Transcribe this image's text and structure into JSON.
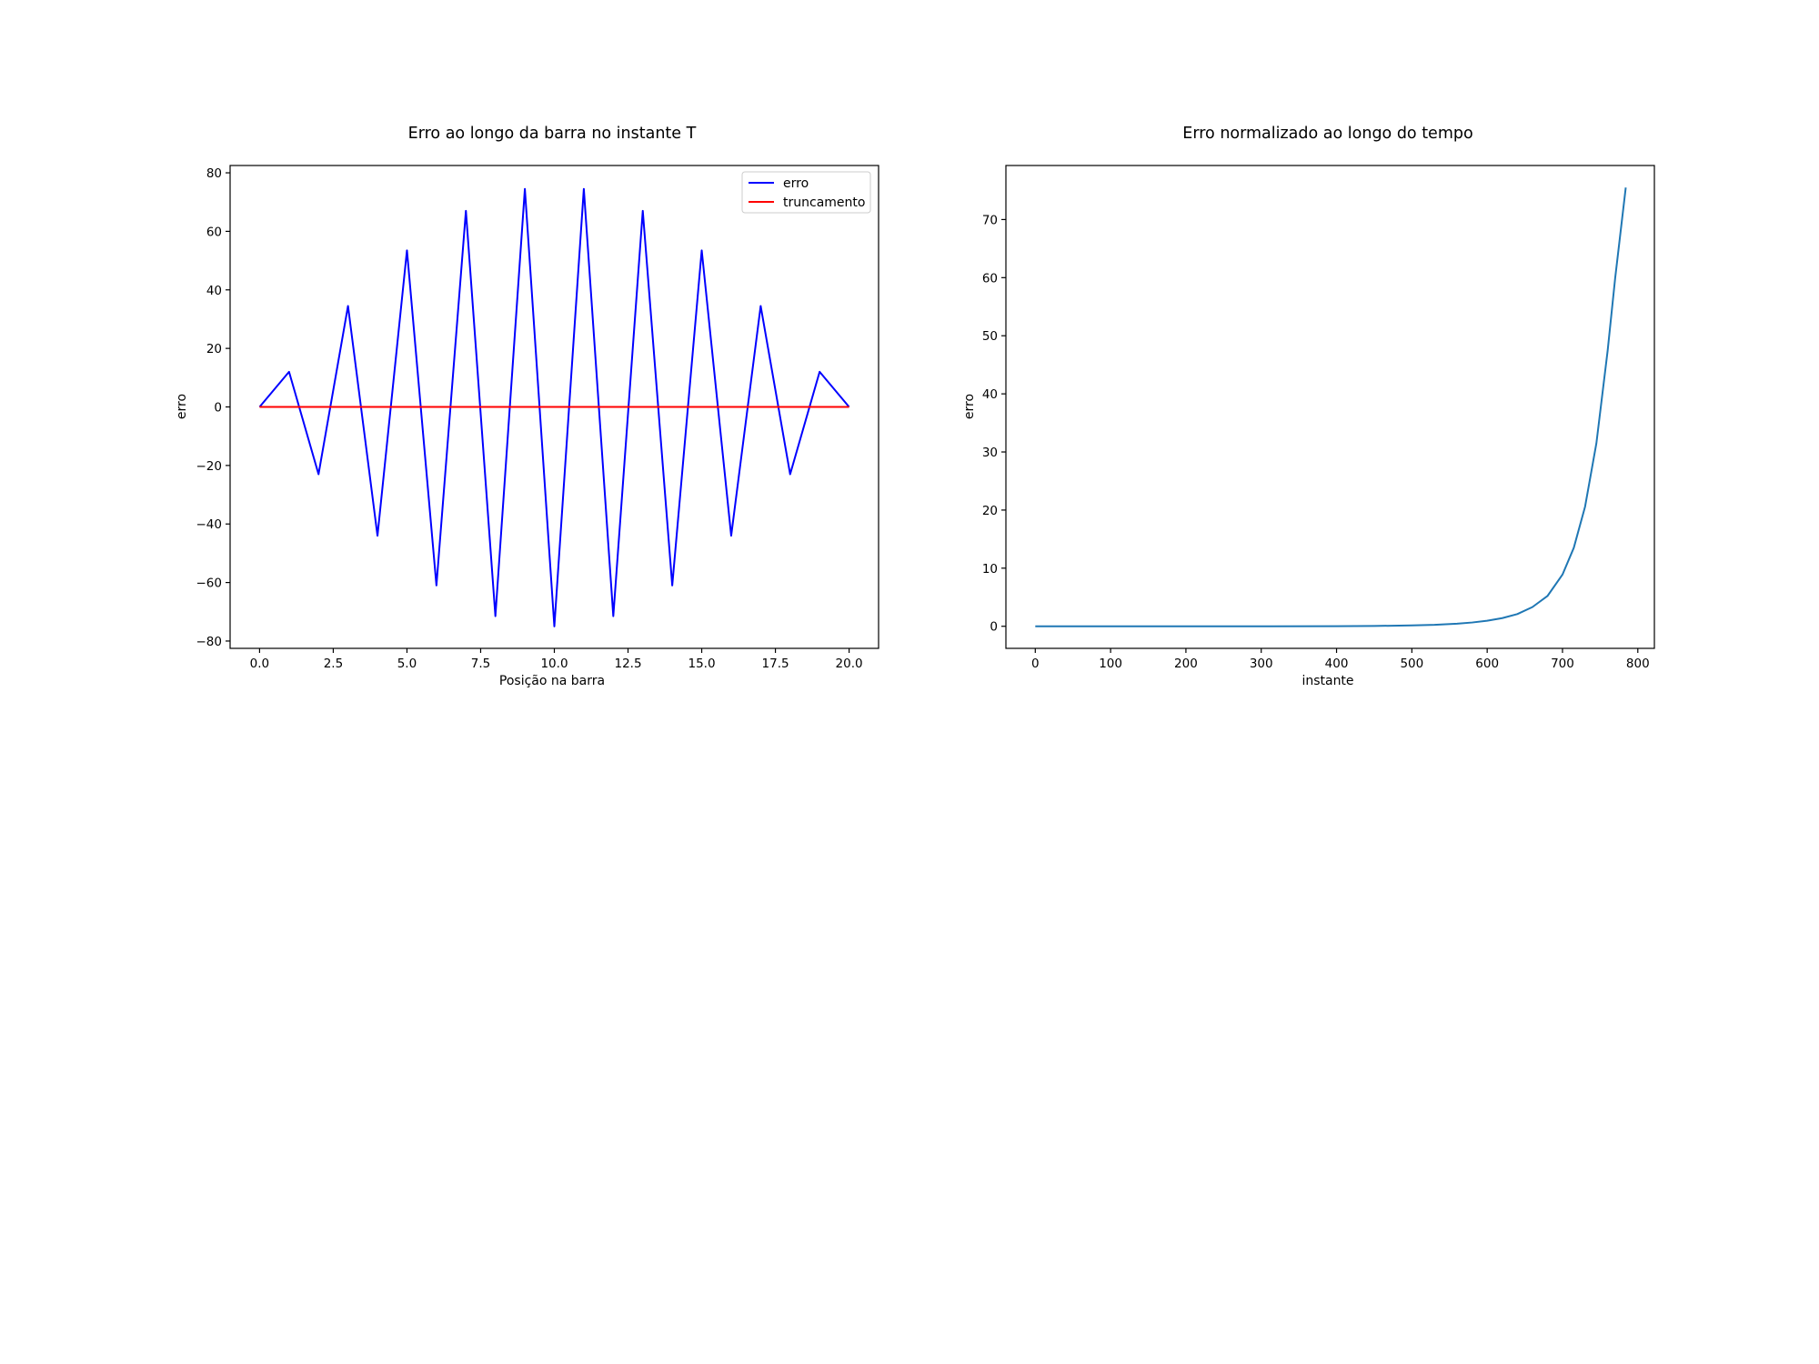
{
  "chart_data": [
    {
      "type": "line",
      "title": "Erro ao longo da barra no instante T",
      "xlabel": "Posição na barra",
      "ylabel": "erro",
      "xlim": [
        -1.0,
        21.0
      ],
      "ylim": [
        -82.5,
        82.5
      ],
      "xticks": [
        0.0,
        2.5,
        5.0,
        7.5,
        10.0,
        12.5,
        15.0,
        17.5,
        20.0
      ],
      "xtick_labels": [
        "0.0",
        "2.5",
        "5.0",
        "7.5",
        "10.0",
        "12.5",
        "15.0",
        "17.5",
        "20.0"
      ],
      "yticks": [
        -80,
        -60,
        -40,
        -20,
        0,
        20,
        40,
        60,
        80
      ],
      "ytick_labels": [
        "−80",
        "−60",
        "−40",
        "−20",
        "0",
        "20",
        "40",
        "60",
        "80"
      ],
      "grid": false,
      "legend": "top-right",
      "series": [
        {
          "name": "erro",
          "color": "#0000ff",
          "x": [
            0,
            1,
            2,
            3,
            4,
            5,
            6,
            7,
            8,
            9,
            10,
            11,
            12,
            13,
            14,
            15,
            16,
            17,
            18,
            19,
            20
          ],
          "y": [
            0,
            12,
            -23,
            34.5,
            -44,
            53.5,
            -61,
            67,
            -71.5,
            74.5,
            -75,
            74.5,
            -71.5,
            67,
            -61,
            53.5,
            -44,
            34.5,
            -23,
            12,
            0
          ]
        },
        {
          "name": "truncamento",
          "color": "#ff0000",
          "x": [
            0,
            20
          ],
          "y": [
            0,
            0
          ]
        }
      ]
    },
    {
      "type": "line",
      "title": "Erro normalizado ao longo do tempo",
      "xlabel": "instante",
      "ylabel": "erro",
      "xlim": [
        -39,
        822
      ],
      "ylim": [
        -3.8,
        79.3
      ],
      "xticks": [
        0,
        100,
        200,
        300,
        400,
        500,
        600,
        700,
        800
      ],
      "xtick_labels": [
        "0",
        "100",
        "200",
        "300",
        "400",
        "500",
        "600",
        "700",
        "800"
      ],
      "yticks": [
        0,
        10,
        20,
        30,
        40,
        50,
        60,
        70
      ],
      "ytick_labels": [
        "0",
        "10",
        "20",
        "30",
        "40",
        "50",
        "60",
        "70"
      ],
      "grid": false,
      "series": [
        {
          "color": "#1f77b4",
          "x": [
            0,
            100,
            200,
            300,
            400,
            450,
            500,
            530,
            560,
            580,
            600,
            620,
            640,
            660,
            680,
            700,
            715,
            730,
            745,
            760,
            770,
            784
          ],
          "y": [
            0,
            0,
            0,
            0,
            0.02,
            0.05,
            0.15,
            0.25,
            0.45,
            0.65,
            0.95,
            1.4,
            2.1,
            3.3,
            5.2,
            8.9,
            13.5,
            20.6,
            31.5,
            47.5,
            60,
            75.5
          ]
        }
      ]
    }
  ]
}
